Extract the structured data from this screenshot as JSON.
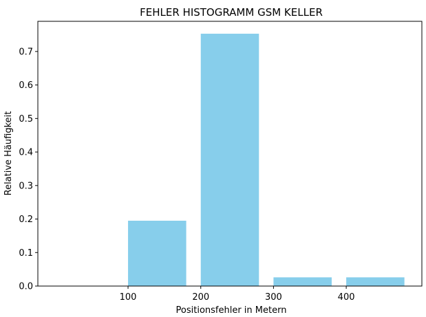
{
  "chart_data": {
    "type": "bar",
    "title": "FEHLER HISTOGRAMM GSM KELLER",
    "xlabel": "Positionsfehler in Metern",
    "ylabel": "Relative Häufigkeit",
    "bins": [
      {
        "start": 100,
        "end": 180,
        "value": 0.195
      },
      {
        "start": 200,
        "end": 280,
        "value": 0.753
      },
      {
        "start": 300,
        "end": 380,
        "value": 0.026
      },
      {
        "start": 400,
        "end": 480,
        "value": 0.026
      }
    ],
    "xticks": [
      {
        "value": 100,
        "label": "100"
      },
      {
        "value": 200,
        "label": "200"
      },
      {
        "value": 300,
        "label": "300"
      },
      {
        "value": 400,
        "label": "400"
      }
    ],
    "yticks": [
      {
        "value": 0.0,
        "label": "0.0"
      },
      {
        "value": 0.1,
        "label": "0.1"
      },
      {
        "value": 0.2,
        "label": "0.2"
      },
      {
        "value": 0.3,
        "label": "0.3"
      },
      {
        "value": 0.4,
        "label": "0.4"
      },
      {
        "value": 0.5,
        "label": "0.5"
      },
      {
        "value": 0.6,
        "label": "0.6"
      },
      {
        "value": 0.7,
        "label": "0.7"
      }
    ],
    "xlim": [
      -24,
      504
    ],
    "ylim": [
      0,
      0.79
    ],
    "bar_color": "#87ceeb",
    "grid": false,
    "legend": "none"
  }
}
